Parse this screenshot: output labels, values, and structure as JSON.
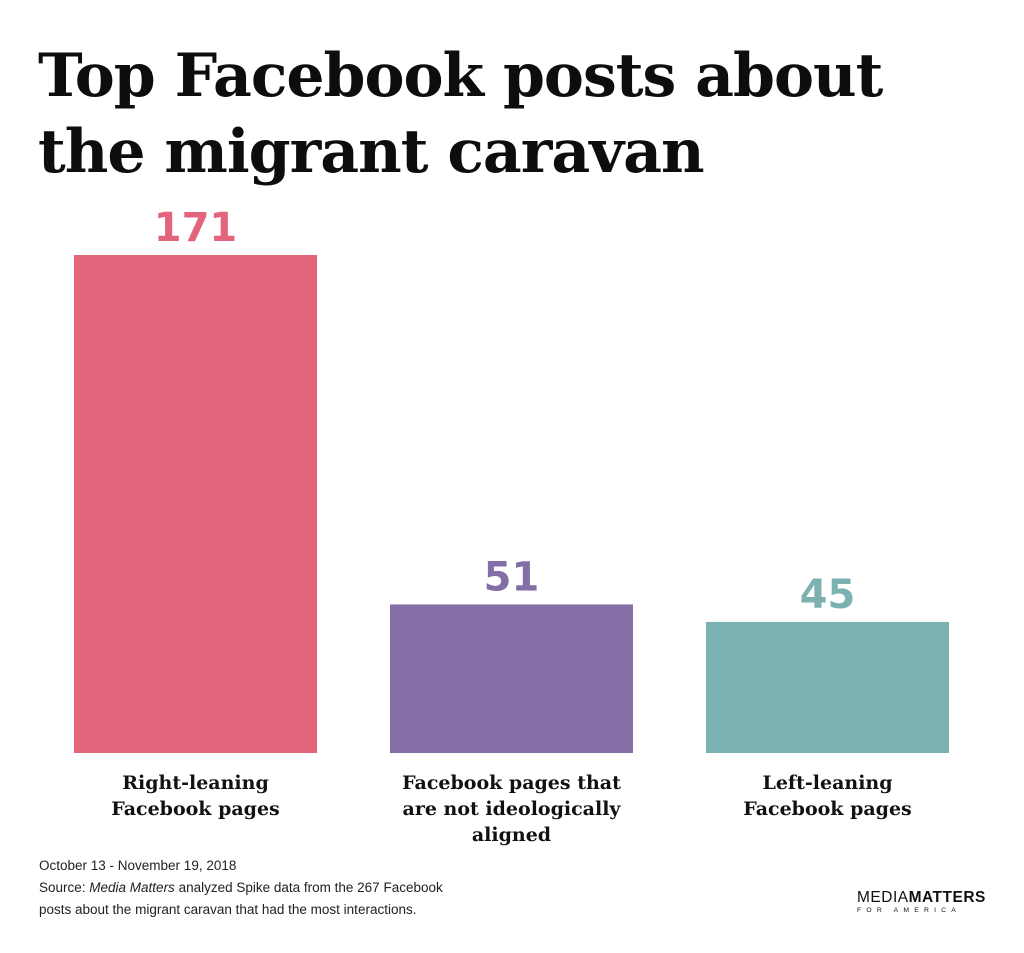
{
  "chart_data": {
    "type": "bar",
    "title_lines": [
      "Top Facebook posts about",
      "the migrant caravan"
    ],
    "categories": [
      "Right-leaning\nFacebook pages",
      "Facebook pages that\nare not ideologically\naligned",
      "Left-leaning\nFacebook pages"
    ],
    "values": [
      171,
      51,
      45
    ],
    "value_labels": [
      "171",
      "51",
      "45"
    ],
    "colors": [
      "#e2657c",
      "#836ea6",
      "#7bb1b1"
    ],
    "xlabel": "",
    "ylabel": "",
    "ylim": [
      0,
      171
    ],
    "grid": false,
    "legend": "none"
  },
  "footer": {
    "date_range": "October 13 - November 19, 2018",
    "source_prefix": "Source: ",
    "source_name": "Media Matters",
    "source_rest": " analyzed Spike data from the 267 Facebook",
    "source_line2": "posts about the migrant caravan that had the most interactions."
  },
  "logo": {
    "part1": "MEDIA",
    "part2": "MATTERS",
    "sub": "FOR AMERICA"
  }
}
